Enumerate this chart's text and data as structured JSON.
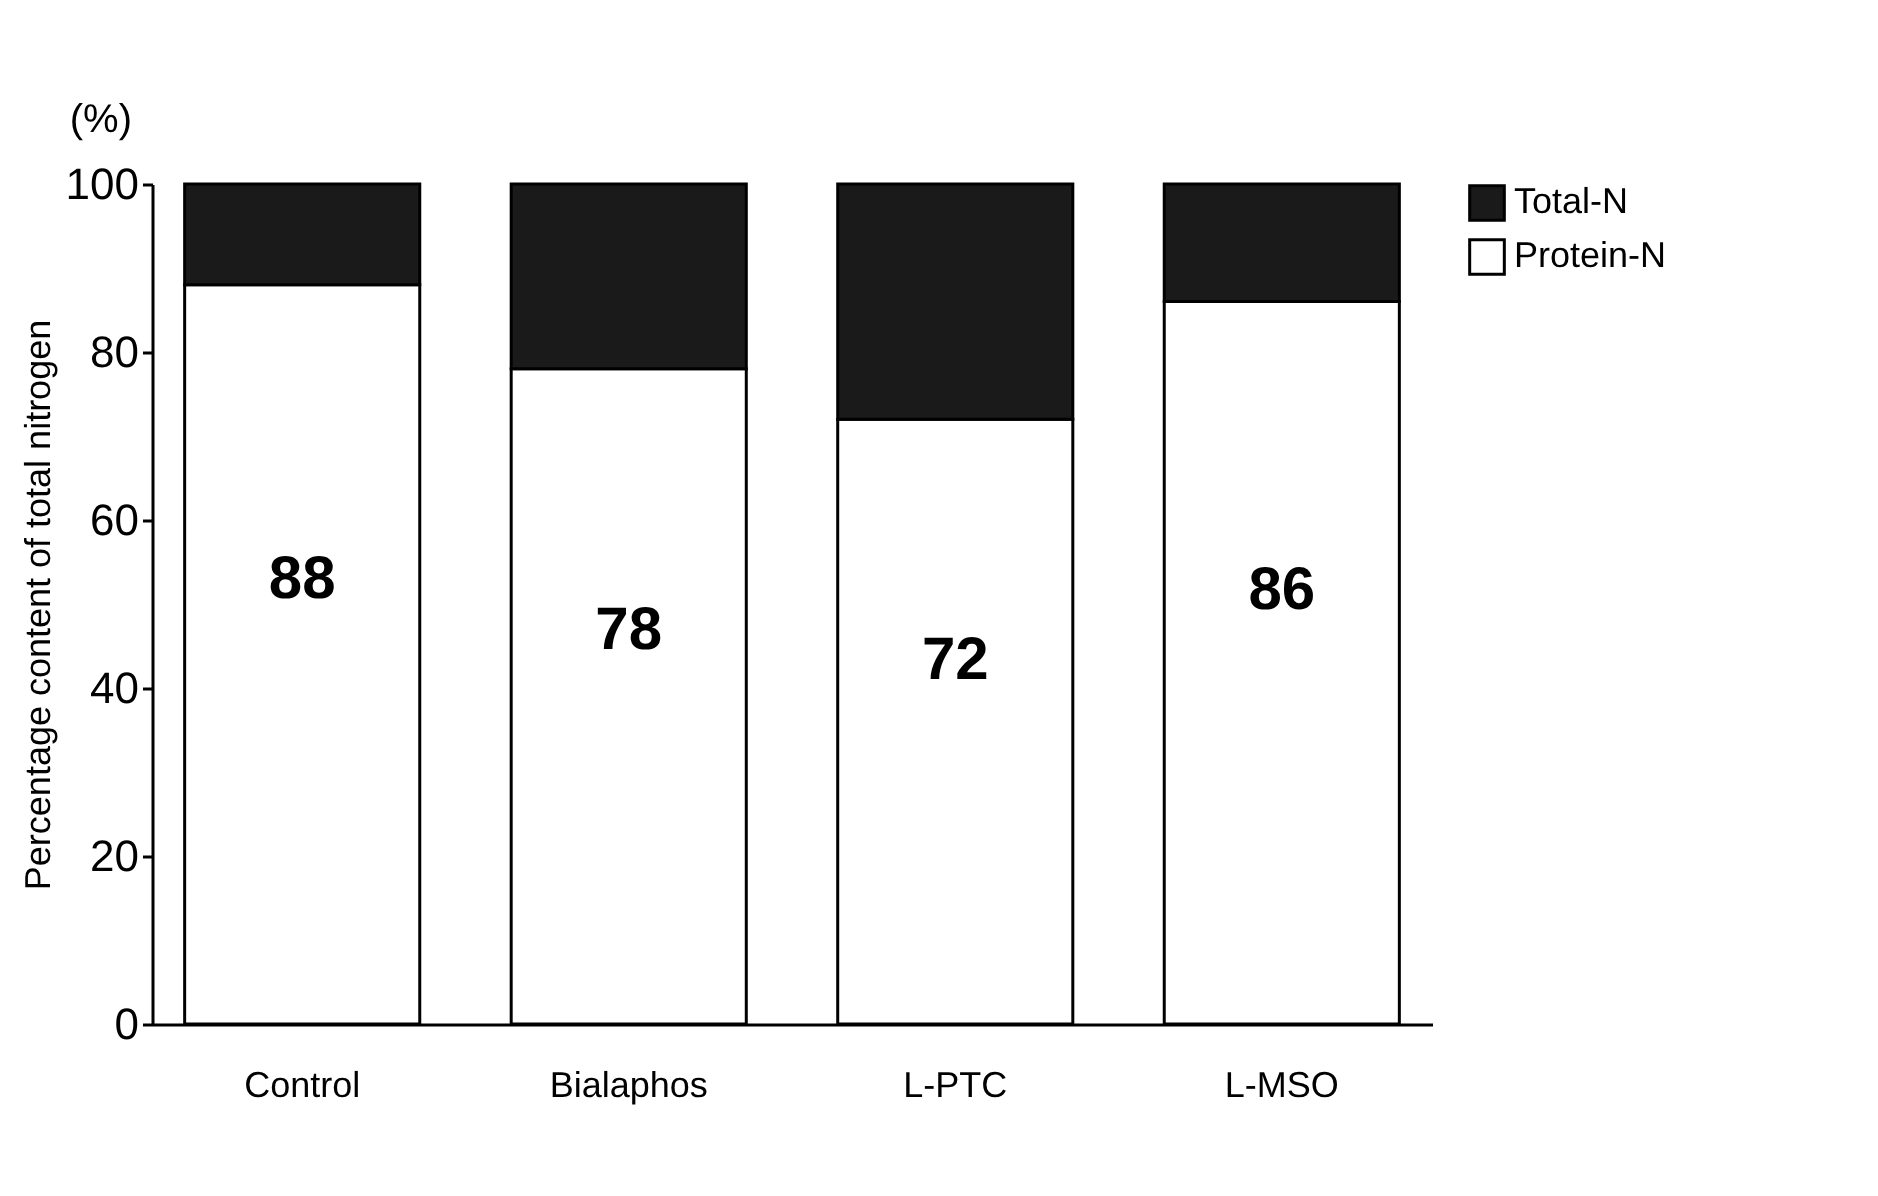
{
  "chart_data": {
    "type": "bar",
    "stacked": true,
    "ylabel": "Percentage content of total nitrogen",
    "annotations": [
      "(%)"
    ],
    "categories": [
      "Control",
      "Bialaphos",
      "L-PTC",
      "L-MSO"
    ],
    "series": [
      {
        "name": "Protein-N",
        "color": "#ffffff",
        "values": [
          88,
          78,
          72,
          86
        ],
        "value_labels": [
          "88",
          "78",
          "72",
          "86"
        ]
      },
      {
        "name": "Total-N",
        "color": "#1a1a1a",
        "values": [
          12,
          22,
          28,
          14
        ]
      }
    ],
    "ylim": [
      0,
      100
    ],
    "yticks": [
      0,
      20,
      40,
      60,
      80,
      100
    ],
    "grid": false,
    "legend": "right"
  }
}
